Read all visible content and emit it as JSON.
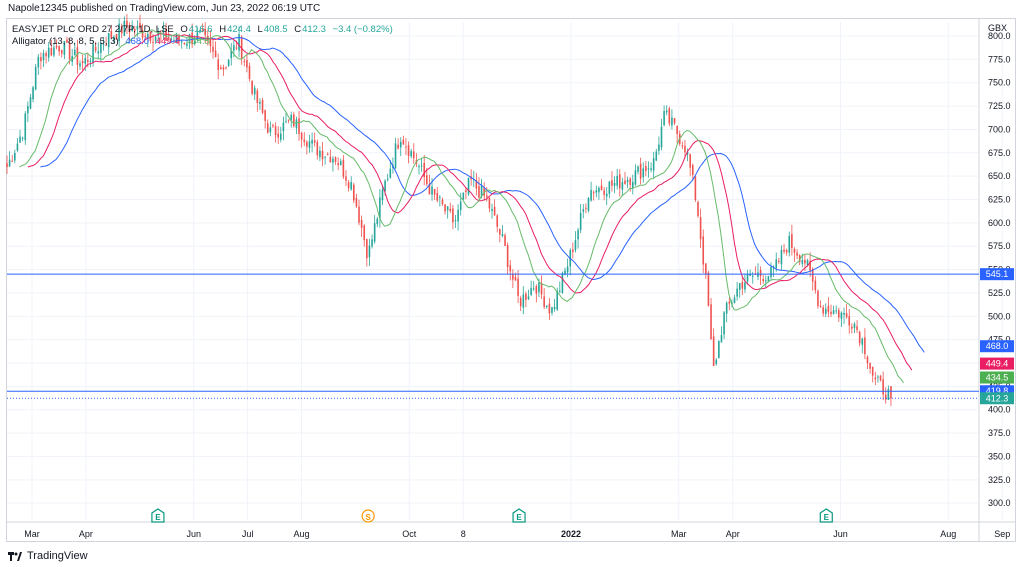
{
  "header": {
    "published_line": "Napole12345 published on TradingView.com, Jun 23, 2022 06:19 UTC"
  },
  "legend": {
    "symbol": "EASYJET PLC ORD 27 2/7P, 1D, LSE",
    "ohlc_label": "O",
    "o": "416.6",
    "h_label": "H",
    "h": "424.4",
    "l_label": "L",
    "l": "408.5",
    "c_label": "C",
    "c": "412.3",
    "change": "−3.4 (−0.82%)",
    "indicator": "Alligator (13, 8, 8, 5, 5, 3)",
    "jaw": "468.0",
    "teeth": "449.4",
    "lips": "434.5"
  },
  "brand": {
    "name": "TradingView"
  },
  "colors": {
    "up": "#26a69a",
    "down": "#ef5350",
    "jaw": "#2962ff",
    "teeth": "#e91e63",
    "lips": "#66bb6a",
    "hline": "#2962ff",
    "grid": "#f0f3fa",
    "axis_text": "#131722"
  },
  "chart_data": {
    "type": "candlestick",
    "currency": "GBX",
    "ylim": [
      282,
      815
    ],
    "y_ticks": [
      300,
      325,
      350,
      375,
      400,
      425,
      450,
      475,
      500,
      525,
      550,
      575,
      600,
      625,
      650,
      675,
      700,
      725,
      750,
      775,
      800
    ],
    "x_labels": [
      {
        "label": "Mar",
        "month": 0
      },
      {
        "label": "Apr",
        "month": 1
      },
      {
        "label": "Jun",
        "month": 3
      },
      {
        "label": "Jul",
        "month": 4
      },
      {
        "label": "Aug",
        "month": 5
      },
      {
        "label": "Oct",
        "month": 7
      },
      {
        "label": "8",
        "month": 8
      },
      {
        "label": "2022",
        "month": 10
      },
      {
        "label": "Mar",
        "month": 12
      },
      {
        "label": "Apr",
        "month": 13
      },
      {
        "label": "Jun",
        "month": 15
      },
      {
        "label": "Aug",
        "month": 17
      },
      {
        "label": "Sep",
        "month": 18
      }
    ],
    "horizontal_lines": [
      {
        "value": 545.1,
        "style": "solid",
        "label": "545.1"
      },
      {
        "value": 419.8,
        "style": "solid",
        "label": "419.8"
      },
      {
        "value": 412.3,
        "style": "dotted",
        "label": "412.3"
      }
    ],
    "price_badges": [
      {
        "label": "468.0",
        "value": 468.0,
        "color": "#2962ff"
      },
      {
        "label": "449.4",
        "value": 449.4,
        "color": "#e91e63"
      },
      {
        "label": "434.5",
        "value": 434.5,
        "color": "#4caf50"
      },
      {
        "label": "419.8",
        "value": 419.8,
        "color": "#2962ff"
      },
      {
        "label": "412.3",
        "value": 412.3,
        "color": "#26a69a"
      }
    ],
    "events": [
      {
        "label": "E",
        "month": 2.8,
        "type": "earnings"
      },
      {
        "label": "S",
        "month": 6.7,
        "type": "split"
      },
      {
        "label": "E",
        "month": 9.5,
        "type": "earnings"
      },
      {
        "label": "E",
        "month": 15.2,
        "type": "earnings"
      }
    ],
    "price_path": [
      [
        0,
        660
      ],
      [
        0.3,
        700
      ],
      [
        0.6,
        780
      ],
      [
        1,
        790
      ],
      [
        1.4,
        770
      ],
      [
        1.8,
        795
      ],
      [
        2.2,
        810
      ],
      [
        2.8,
        800
      ],
      [
        3.2,
        795
      ],
      [
        3.6,
        800
      ],
      [
        4,
        765
      ],
      [
        4.3,
        795
      ],
      [
        4.6,
        735
      ],
      [
        4.9,
        695
      ],
      [
        5.3,
        710
      ],
      [
        5.7,
        680
      ],
      [
        6.1,
        670
      ],
      [
        6.4,
        640
      ],
      [
        6.7,
        565
      ],
      [
        7,
        640
      ],
      [
        7.3,
        695
      ],
      [
        7.6,
        665
      ],
      [
        7.9,
        630
      ],
      [
        8.3,
        600
      ],
      [
        8.6,
        645
      ],
      [
        8.9,
        625
      ],
      [
        9.2,
        580
      ],
      [
        9.5,
        515
      ],
      [
        9.8,
        535
      ],
      [
        10.1,
        505
      ],
      [
        10.4,
        555
      ],
      [
        10.8,
        635
      ],
      [
        11.2,
        640
      ],
      [
        11.6,
        650
      ],
      [
        12,
        665
      ],
      [
        12.2,
        715
      ],
      [
        12.4,
        700
      ],
      [
        12.6,
        680
      ],
      [
        12.8,
        620
      ],
      [
        13,
        520
      ],
      [
        13.1,
        440
      ],
      [
        13.3,
        500
      ],
      [
        13.6,
        535
      ],
      [
        13.9,
        545
      ],
      [
        14.2,
        545
      ],
      [
        14.5,
        580
      ],
      [
        14.8,
        560
      ],
      [
        15.1,
        510
      ],
      [
        15.4,
        505
      ],
      [
        15.7,
        495
      ],
      [
        15.9,
        470
      ],
      [
        16.1,
        430
      ],
      [
        16.3,
        420
      ],
      [
        16.4,
        412.3
      ]
    ],
    "series": [
      {
        "name": "Jaw",
        "period": 13,
        "shift": 8
      },
      {
        "name": "Teeth",
        "period": 8,
        "shift": 5
      },
      {
        "name": "Lips",
        "period": 5,
        "shift": 3
      }
    ]
  }
}
